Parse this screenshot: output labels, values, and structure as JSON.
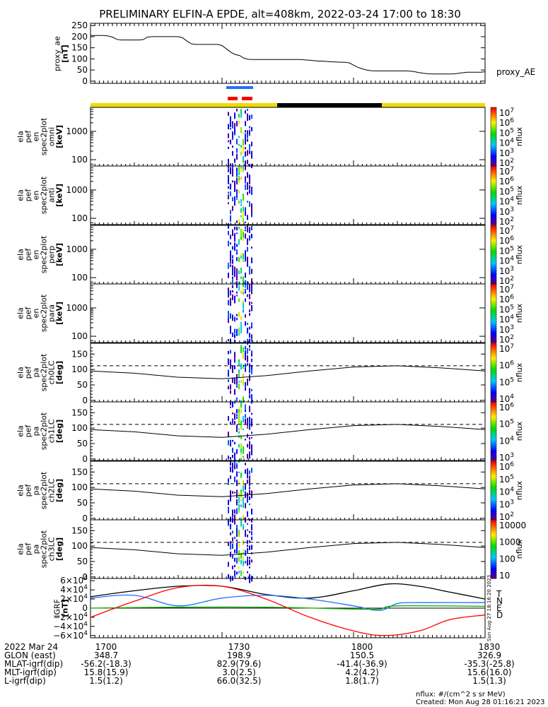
{
  "title": "PRELIMINARY ELFIN-A EPDE, alt=408km, 2022-03-24 17:00 to 18:30",
  "colors": {
    "red": "#ff0000",
    "blue": "#1e6fff",
    "green": "#00aa00",
    "yellow": "#f2dc00",
    "black": "#000000"
  },
  "chart_data": [
    {
      "type": "line",
      "name": "proxy_ae",
      "ylabel_lines": [
        "proxy_ae",
        "[nT]"
      ],
      "legend": "proxy_AE",
      "ylim": [
        -10,
        260
      ],
      "yticks": [
        0,
        50,
        100,
        150,
        200,
        250
      ],
      "x_minutes": [
        0,
        1,
        2,
        3,
        4,
        5,
        6,
        7,
        8,
        9,
        10,
        11,
        12,
        13,
        14,
        15,
        16,
        17,
        18,
        19,
        20,
        21,
        22,
        23,
        24,
        25,
        26,
        27,
        28,
        29,
        30,
        31,
        32,
        33,
        34,
        35,
        36,
        37,
        38,
        39,
        40,
        41,
        42,
        43,
        44,
        45,
        46,
        47,
        48,
        49,
        50,
        51,
        52,
        53,
        54,
        55,
        56,
        57,
        58,
        59,
        60,
        61,
        62,
        63,
        64,
        65,
        66,
        67,
        68,
        69,
        70,
        71,
        72,
        73,
        74,
        75,
        76,
        77,
        78,
        79,
        80,
        81,
        82,
        83,
        84,
        85,
        86,
        87,
        88,
        89,
        90
      ],
      "values": [
        205,
        205,
        205,
        205,
        203,
        198,
        188,
        185,
        185,
        185,
        185,
        185,
        187,
        198,
        200,
        200,
        200,
        200,
        200,
        200,
        200,
        195,
        180,
        168,
        165,
        165,
        165,
        165,
        165,
        165,
        160,
        145,
        130,
        120,
        115,
        103,
        98,
        97,
        97,
        97,
        97,
        97,
        97,
        97,
        97,
        97,
        97,
        97,
        97,
        95,
        94,
        92,
        90,
        90,
        88,
        87,
        86,
        85,
        85,
        82,
        72,
        62,
        55,
        50,
        47,
        46,
        46,
        46,
        46,
        46,
        46,
        46,
        46,
        45,
        42,
        38,
        35,
        33,
        32,
        32,
        32,
        32,
        32,
        33,
        35,
        38,
        40,
        40,
        40,
        40,
        42
      ]
    },
    {
      "type": "heatmap",
      "name": "ela_pef_en_spec2plot_omni",
      "ylabel_lines": [
        "ela",
        "pef",
        "en",
        "spec2plot",
        "omni",
        "[keV]"
      ],
      "yscale": "log",
      "ylim": [
        60,
        7000
      ],
      "yticks": [
        100,
        1000
      ],
      "colorbar": {
        "label": "nflux",
        "scale": "log",
        "range": [
          100,
          10000000
        ],
        "ticks": [
          "10^7",
          "10^6",
          "10^5",
          "10^4",
          "10^3",
          "10^2"
        ]
      }
    },
    {
      "type": "heatmap",
      "name": "ela_pef_en_spec2plot_anti",
      "ylabel_lines": [
        "ela",
        "pef",
        "en",
        "spec2plot",
        "anti",
        "[keV]"
      ],
      "yscale": "log",
      "ylim": [
        60,
        7000
      ],
      "yticks": [
        100,
        1000
      ],
      "colorbar": {
        "label": "nflux",
        "scale": "log",
        "range": [
          100,
          10000000
        ],
        "ticks": [
          "10^7",
          "10^6",
          "10^5",
          "10^4",
          "10^3",
          "10^2"
        ]
      }
    },
    {
      "type": "heatmap",
      "name": "ela_pef_en_spec2plot_perp",
      "ylabel_lines": [
        "ela",
        "pef",
        "en",
        "spec2plot",
        "perp",
        "[keV]"
      ],
      "yscale": "log",
      "ylim": [
        60,
        7000
      ],
      "yticks": [
        100,
        1000
      ],
      "colorbar": {
        "label": "nflux",
        "scale": "log",
        "range": [
          100,
          10000000
        ],
        "ticks": [
          "10^7",
          "10^6",
          "10^5",
          "10^4",
          "10^3",
          "10^2"
        ]
      }
    },
    {
      "type": "heatmap",
      "name": "ela_pef_en_spec2plot_para",
      "ylabel_lines": [
        "ela",
        "pef",
        "en",
        "spec2plot",
        "para",
        "[keV]"
      ],
      "yscale": "log",
      "ylim": [
        60,
        7000
      ],
      "yticks": [
        100,
        1000
      ],
      "colorbar": {
        "label": "nflux",
        "scale": "log",
        "range": [
          100,
          10000000
        ],
        "ticks": [
          "10^7",
          "10^6",
          "10^5",
          "10^4",
          "10^3",
          "10^2"
        ]
      }
    },
    {
      "type": "heatmap",
      "name": "ela_pef_pa_spec2plot_ch0LC",
      "ylabel_lines": [
        "ela",
        "pef",
        "pa",
        "spec2plot",
        "ch0LC",
        "[deg]"
      ],
      "ylim": [
        -5,
        185
      ],
      "yticks": [
        0,
        50,
        100,
        150
      ],
      "loss_cone_solid_deg": [
        95,
        88,
        75,
        70,
        80,
        95,
        108,
        112,
        105,
        95
      ],
      "loss_cone_dashed_deg": [
        112,
        112
      ],
      "colorbar": {
        "label": "nflux",
        "scale": "log",
        "range": [
          10000,
          10000000
        ],
        "ticks": [
          "10^7",
          "10^6",
          "10^5",
          "10^4"
        ]
      }
    },
    {
      "type": "heatmap",
      "name": "ela_pef_pa_spec2plot_ch1LC",
      "ylabel_lines": [
        "ela",
        "pef",
        "pa",
        "spec2plot",
        "ch1LC",
        "[deg]"
      ],
      "ylim": [
        -5,
        185
      ],
      "yticks": [
        0,
        50,
        100,
        150
      ],
      "loss_cone_solid_deg": [
        95,
        88,
        75,
        70,
        80,
        95,
        108,
        112,
        105,
        95
      ],
      "loss_cone_dashed_deg": [
        112,
        112
      ],
      "colorbar": {
        "label": "nflux",
        "scale": "log",
        "range": [
          1000,
          1000000
        ],
        "ticks": [
          "10^6",
          "10^5",
          "10^4",
          "10^3"
        ]
      }
    },
    {
      "type": "heatmap",
      "name": "ela_pef_pa_spec2plot_ch2LC",
      "ylabel_lines": [
        "ela",
        "pef",
        "pa",
        "spec2plot",
        "ch2LC",
        "[deg]"
      ],
      "ylim": [
        -5,
        185
      ],
      "yticks": [
        0,
        50,
        100,
        150
      ],
      "loss_cone_solid_deg": [
        95,
        88,
        75,
        70,
        80,
        95,
        108,
        112,
        105,
        95
      ],
      "loss_cone_dashed_deg": [
        112,
        112
      ],
      "colorbar": {
        "label": "nflux",
        "scale": "log",
        "range": [
          100,
          1000000
        ],
        "ticks": [
          "10^6",
          "10^5",
          "10^4",
          "10^3",
          "10^2"
        ]
      }
    },
    {
      "type": "heatmap",
      "name": "ela_pef_pa_spec2plot_ch3LC",
      "ylabel_lines": [
        "ela",
        "pef",
        "pa",
        "spec2plot",
        "ch3LC",
        "[deg]"
      ],
      "ylim": [
        -5,
        185
      ],
      "yticks": [
        0,
        50,
        100,
        150
      ],
      "loss_cone_solid_deg": [
        95,
        88,
        75,
        70,
        80,
        95,
        108,
        112,
        105,
        95
      ],
      "loss_cone_dashed_deg": [
        112,
        112
      ],
      "colorbar": {
        "label": "nflux",
        "scale": "log",
        "range": [
          10,
          10000
        ],
        "ticks": [
          "10000",
          "1000",
          "100",
          "10"
        ]
      }
    },
    {
      "type": "line",
      "name": "IGRF",
      "ylabel_lines": [
        "IGRF",
        "[nT]"
      ],
      "ylim": [
        -65000,
        65000
      ],
      "yticks": [
        "6×10^4",
        "4×10^4",
        "2×10^4",
        "0",
        "−2×10^4",
        "−4×10^4",
        "−6×10^4"
      ],
      "side_text": "Sun Aug 27 18:16:20 2023",
      "series": [
        {
          "name": "T",
          "color": "black",
          "x_minutes": [
            0,
            10,
            20,
            30,
            40,
            50,
            60,
            68,
            75,
            82,
            90
          ],
          "values": [
            25000,
            38000,
            48000,
            48000,
            30000,
            22000,
            38000,
            53000,
            48000,
            35000,
            20000
          ]
        },
        {
          "name": "N",
          "color": "blue",
          "x_minutes": [
            0,
            10,
            20,
            30,
            40,
            50,
            60,
            66,
            70,
            75,
            90
          ],
          "values": [
            22000,
            28000,
            5000,
            22000,
            28000,
            20000,
            5000,
            -5000,
            10000,
            12000,
            12000
          ]
        },
        {
          "name": "E",
          "color": "green",
          "x_minutes": [
            0,
            20,
            40,
            60,
            66,
            70,
            90
          ],
          "values": [
            0,
            2000,
            2000,
            -2000,
            -2000,
            5000,
            4000
          ]
        },
        {
          "name": "D",
          "color": "red",
          "x_minutes": [
            0,
            10,
            20,
            30,
            40,
            50,
            60,
            67,
            75,
            82,
            90
          ],
          "values": [
            -20000,
            15000,
            45000,
            48000,
            20000,
            -20000,
            -50000,
            -60000,
            -50000,
            -25000,
            -15000
          ]
        }
      ]
    }
  ],
  "footer": {
    "rows": [
      {
        "label": "2022 Mar 24",
        "values": [
          "1700",
          "1730",
          "1800",
          "1830"
        ]
      },
      {
        "label": "GLON (east)",
        "values": [
          "348.7",
          "198.9",
          "150.5",
          "326.9"
        ]
      },
      {
        "label": "MLAT-igrf(dip)",
        "values": [
          "-56.2(-18.3)",
          "82.9(79.6)",
          "-41.4(-36.9)",
          "-35.3(-25.8)"
        ]
      },
      {
        "label": "MLT-igrf(dip)",
        "values": [
          "15.8(15.9)",
          "3.0(2.5)",
          "4.2(4.2)",
          "15.6(16.0)"
        ]
      },
      {
        "label": "L-igrf(dip)",
        "values": [
          "1.5(1.2)",
          "66.0(32.5)",
          "1.8(1.7)",
          "1.5(1.3)"
        ]
      }
    ],
    "units_note": "nflux: #/(cm^2 s sr MeV)",
    "created": "Created: Mon Aug 28 01:16:21 2023"
  }
}
